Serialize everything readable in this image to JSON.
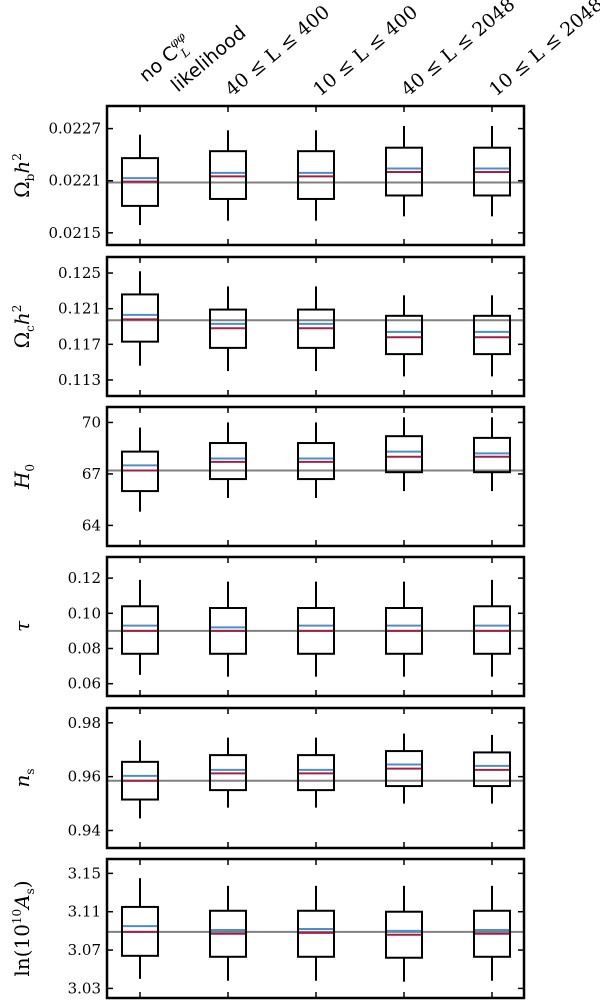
{
  "chart_data": {
    "type": "boxplot",
    "categories": [
      "no C_L^{φφ} likelihood",
      "40 ≤ L ≤ 400",
      "10 ≤ L ≤ 400",
      "40 ≤ L ≤ 2048",
      "10 ≤ L ≤ 2048"
    ],
    "category_labels": [
      {
        "line1": "no C",
        "sup": "φφ",
        "sub": "L",
        "line2": "likelihood"
      },
      {
        "text": "40 ≤ L ≤ 400"
      },
      {
        "text": "10 ≤ L ≤ 400"
      },
      {
        "text": "40 ≤ L ≤ 2048"
      },
      {
        "text": "10 ≤ L ≤ 2048"
      }
    ],
    "colors": {
      "box": "#000000",
      "fiducial_line": "#808080",
      "mean_line": "#4a90c8",
      "median_line": "#a0204a"
    },
    "panels": [
      {
        "ylabel": "Ω_b h²",
        "ylabel_parts": {
          "base": "Ω",
          "sub": "b",
          "tail": "h",
          "sup": "2"
        },
        "ylim": [
          0.02136,
          0.02296
        ],
        "ticks": [
          0.0215,
          0.0221,
          0.0227
        ],
        "tick_labels": [
          "0.0215",
          "0.0221",
          "0.0227"
        ],
        "fiducial": 0.02208,
        "boxes": [
          {
            "whisker_low": 0.02159,
            "q1": 0.02181,
            "median": 0.02209,
            "mean": 0.02213,
            "q3": 0.02236,
            "whisker_high": 0.02263
          },
          {
            "whisker_low": 0.02164,
            "q1": 0.02189,
            "median": 0.02215,
            "mean": 0.02219,
            "q3": 0.02244,
            "whisker_high": 0.02268
          },
          {
            "whisker_low": 0.02164,
            "q1": 0.02189,
            "median": 0.02215,
            "mean": 0.02219,
            "q3": 0.02244,
            "whisker_high": 0.02268
          },
          {
            "whisker_low": 0.02169,
            "q1": 0.02193,
            "median": 0.0222,
            "mean": 0.02224,
            "q3": 0.02248,
            "whisker_high": 0.02273
          },
          {
            "whisker_low": 0.02169,
            "q1": 0.02193,
            "median": 0.0222,
            "mean": 0.02224,
            "q3": 0.02248,
            "whisker_high": 0.02273
          }
        ]
      },
      {
        "ylabel": "Ω_c h²",
        "ylabel_parts": {
          "base": "Ω",
          "sub": "c",
          "tail": "h",
          "sup": "2"
        },
        "ylim": [
          0.1112,
          0.1268
        ],
        "ticks": [
          0.113,
          0.117,
          0.121,
          0.125
        ],
        "tick_labels": [
          "0.113",
          "0.117",
          "0.121",
          "0.125"
        ],
        "fiducial": 0.1197,
        "boxes": [
          {
            "whisker_low": 0.1146,
            "q1": 0.1173,
            "median": 0.1198,
            "mean": 0.1203,
            "q3": 0.1226,
            "whisker_high": 0.1252
          },
          {
            "whisker_low": 0.114,
            "q1": 0.1166,
            "median": 0.1188,
            "mean": 0.1193,
            "q3": 0.1209,
            "whisker_high": 0.1235
          },
          {
            "whisker_low": 0.114,
            "q1": 0.1166,
            "median": 0.1188,
            "mean": 0.1193,
            "q3": 0.1209,
            "whisker_high": 0.1235
          },
          {
            "whisker_low": 0.1134,
            "q1": 0.1159,
            "median": 0.1178,
            "mean": 0.1184,
            "q3": 0.1202,
            "whisker_high": 0.1225
          },
          {
            "whisker_low": 0.1134,
            "q1": 0.1159,
            "median": 0.1178,
            "mean": 0.1184,
            "q3": 0.1202,
            "whisker_high": 0.1225
          }
        ]
      },
      {
        "ylabel": "H_0",
        "ylabel_parts": {
          "base": "H",
          "sub": "0",
          "tail": "",
          "sup": ""
        },
        "ylim": [
          62.8,
          70.9
        ],
        "ticks": [
          64,
          67,
          70
        ],
        "tick_labels": [
          "64",
          "67",
          "70"
        ],
        "fiducial": 67.2,
        "boxes": [
          {
            "whisker_low": 64.8,
            "q1": 66.0,
            "median": 67.2,
            "mean": 67.5,
            "q3": 68.3,
            "whisker_high": 69.7
          },
          {
            "whisker_low": 65.6,
            "q1": 66.7,
            "median": 67.7,
            "mean": 67.9,
            "q3": 68.8,
            "whisker_high": 70.0
          },
          {
            "whisker_low": 65.6,
            "q1": 66.7,
            "median": 67.7,
            "mean": 67.9,
            "q3": 68.8,
            "whisker_high": 70.0
          },
          {
            "whisker_low": 66.0,
            "q1": 67.1,
            "median": 68.0,
            "mean": 68.3,
            "q3": 69.2,
            "whisker_high": 70.3
          },
          {
            "whisker_low": 66.0,
            "q1": 67.1,
            "median": 68.0,
            "mean": 68.2,
            "q3": 69.1,
            "whisker_high": 70.3
          }
        ]
      },
      {
        "ylabel": "τ",
        "ylabel_parts": {
          "base": "τ",
          "sub": "",
          "tail": "",
          "sup": ""
        },
        "ylim": [
          0.053,
          0.132
        ],
        "ticks": [
          0.06,
          0.08,
          0.1,
          0.12
        ],
        "tick_labels": [
          "0.06",
          "0.08",
          "0.10",
          "0.12"
        ],
        "fiducial": 0.09,
        "boxes": [
          {
            "whisker_low": 0.065,
            "q1": 0.077,
            "median": 0.09,
            "mean": 0.093,
            "q3": 0.104,
            "whisker_high": 0.119
          },
          {
            "whisker_low": 0.064,
            "q1": 0.077,
            "median": 0.09,
            "mean": 0.092,
            "q3": 0.103,
            "whisker_high": 0.118
          },
          {
            "whisker_low": 0.064,
            "q1": 0.077,
            "median": 0.09,
            "mean": 0.093,
            "q3": 0.103,
            "whisker_high": 0.118
          },
          {
            "whisker_low": 0.064,
            "q1": 0.077,
            "median": 0.09,
            "mean": 0.093,
            "q3": 0.103,
            "whisker_high": 0.118
          },
          {
            "whisker_low": 0.064,
            "q1": 0.077,
            "median": 0.09,
            "mean": 0.093,
            "q3": 0.104,
            "whisker_high": 0.119
          }
        ]
      },
      {
        "ylabel": "n_s",
        "ylabel_parts": {
          "base": "n",
          "sub": "s",
          "tail": "",
          "sup": ""
        },
        "ylim": [
          0.9335,
          0.9855
        ],
        "ticks": [
          0.94,
          0.96,
          0.98
        ],
        "tick_labels": [
          "0.94",
          "0.96",
          "0.98"
        ],
        "fiducial": 0.9585,
        "boxes": [
          {
            "whisker_low": 0.9445,
            "q1": 0.9515,
            "median": 0.9585,
            "mean": 0.9603,
            "q3": 0.9655,
            "whisker_high": 0.9735
          },
          {
            "whisker_low": 0.9485,
            "q1": 0.955,
            "median": 0.9612,
            "mean": 0.9625,
            "q3": 0.968,
            "whisker_high": 0.9745
          },
          {
            "whisker_low": 0.9485,
            "q1": 0.955,
            "median": 0.9612,
            "mean": 0.9625,
            "q3": 0.968,
            "whisker_high": 0.9745
          },
          {
            "whisker_low": 0.95,
            "q1": 0.9565,
            "median": 0.963,
            "mean": 0.9645,
            "q3": 0.9695,
            "whisker_high": 0.976
          },
          {
            "whisker_low": 0.95,
            "q1": 0.9565,
            "median": 0.9625,
            "mean": 0.964,
            "q3": 0.969,
            "whisker_high": 0.9755
          }
        ]
      },
      {
        "ylabel": "ln(10¹⁰ A_s)",
        "ylabel_parts": {
          "prefix": "ln(10",
          "prefix_sup": "10",
          "base": "A",
          "sub": "s",
          "suffix": ")"
        },
        "ylim": [
          3.02,
          3.165
        ],
        "ticks": [
          3.03,
          3.07,
          3.11,
          3.15
        ],
        "tick_labels": [
          "3.03",
          "3.07",
          "3.11",
          "3.15"
        ],
        "fiducial": 3.089,
        "boxes": [
          {
            "whisker_low": 3.04,
            "q1": 3.064,
            "median": 3.089,
            "mean": 3.095,
            "q3": 3.115,
            "whisker_high": 3.145
          },
          {
            "whisker_low": 3.038,
            "q1": 3.063,
            "median": 3.087,
            "mean": 3.091,
            "q3": 3.111,
            "whisker_high": 3.137
          },
          {
            "whisker_low": 3.038,
            "q1": 3.063,
            "median": 3.088,
            "mean": 3.092,
            "q3": 3.111,
            "whisker_high": 3.137
          },
          {
            "whisker_low": 3.037,
            "q1": 3.062,
            "median": 3.086,
            "mean": 3.09,
            "q3": 3.11,
            "whisker_high": 3.137
          },
          {
            "whisker_low": 3.038,
            "q1": 3.063,
            "median": 3.087,
            "mean": 3.091,
            "q3": 3.111,
            "whisker_high": 3.137
          }
        ]
      }
    ]
  }
}
